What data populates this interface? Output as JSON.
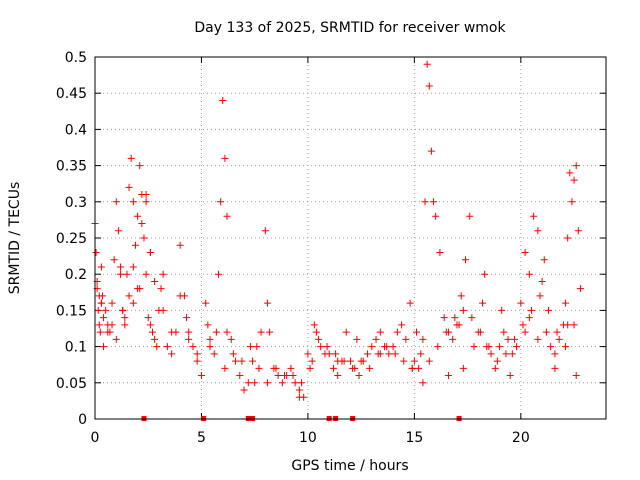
{
  "chart_data": {
    "type": "scatter",
    "title": "Day 133 of 2025, SRMTID for receiver wmok",
    "xlabel": "GPS time / hours",
    "ylabel": "SRMTID / TECUs",
    "xlim": [
      0,
      24
    ],
    "ylim": [
      0,
      0.5
    ],
    "grid": true,
    "legend": "none",
    "x_ticks": [
      0,
      5,
      10,
      15,
      20
    ],
    "x_tick_labels": [
      "0",
      "5",
      "10",
      "15",
      "20"
    ],
    "y_ticks": [
      0,
      0.05,
      0.1,
      0.15,
      0.2,
      0.25,
      0.3,
      0.35,
      0.4,
      0.45,
      0.5
    ],
    "y_tick_labels": [
      "0",
      "0.05",
      "0.1",
      "0.15",
      "0.2",
      "0.25",
      "0.3",
      "0.35",
      "0.4",
      "0.45",
      "0.5"
    ],
    "marker_color": "#ff0000",
    "marker": "plus",
    "series": [
      {
        "name": "SRMTID",
        "x": [
          0.0,
          0.05,
          0.1,
          0.15,
          0.2,
          0.25,
          0.3,
          0.35,
          0.4,
          0.5,
          0.6,
          0.7,
          0.8,
          0.9,
          1.0,
          1.1,
          1.2,
          1.3,
          1.4,
          1.5,
          1.6,
          1.7,
          1.8,
          1.9,
          2.0,
          2.1,
          2.2,
          2.3,
          2.4,
          2.5,
          2.6,
          2.7,
          2.8,
          2.9,
          3.0,
          3.2,
          3.4,
          3.6,
          3.8,
          4.0,
          4.2,
          4.4,
          4.6,
          4.8,
          5.0,
          5.2,
          5.4,
          5.6,
          5.8,
          5.9,
          6.0,
          6.1,
          6.2,
          6.4,
          6.6,
          6.8,
          7.0,
          7.2,
          7.4,
          7.6,
          7.8,
          8.0,
          8.2,
          8.4,
          8.6,
          8.8,
          9.0,
          9.2,
          9.4,
          9.6,
          9.8,
          10.0,
          10.2,
          10.4,
          10.6,
          10.8,
          11.0,
          11.2,
          11.4,
          11.6,
          11.8,
          12.0,
          12.2,
          12.4,
          12.6,
          12.8,
          13.0,
          13.2,
          13.4,
          13.6,
          13.8,
          14.0,
          14.2,
          14.4,
          14.6,
          14.8,
          15.0,
          15.2,
          15.4,
          15.5,
          15.6,
          15.7,
          15.8,
          15.9,
          16.0,
          16.2,
          16.4,
          16.6,
          16.8,
          17.0,
          17.2,
          17.4,
          17.6,
          17.8,
          18.0,
          18.2,
          18.4,
          18.6,
          18.8,
          19.0,
          19.2,
          19.4,
          19.6,
          19.8,
          20.0,
          20.2,
          20.4,
          20.6,
          20.8,
          21.0,
          21.2,
          21.4,
          21.6,
          21.8,
          22.0,
          22.1,
          22.2,
          22.3,
          22.4,
          22.5,
          22.6,
          22.7,
          22.8,
          0.1,
          0.2,
          0.3,
          0.4,
          0.6,
          0.8,
          1.0,
          1.2,
          1.4,
          1.6,
          1.8,
          2.0,
          2.2,
          2.4,
          2.6,
          2.8,
          3.2,
          3.6,
          4.0,
          4.4,
          4.8,
          5.3,
          5.7,
          6.1,
          6.5,
          6.9,
          7.3,
          7.7,
          8.1,
          8.5,
          8.9,
          9.3,
          9.7,
          10.1,
          10.5,
          10.9,
          11.3,
          11.7,
          12.1,
          12.5,
          12.9,
          13.3,
          13.7,
          14.1,
          14.5,
          14.9,
          15.3,
          15.7,
          16.1,
          16.5,
          16.9,
          17.3,
          17.7,
          18.1,
          18.5,
          18.9,
          19.3,
          19.7,
          20.1,
          20.5,
          20.9,
          21.3,
          21.7,
          22.1,
          22.5,
          0.3,
          1.3,
          2.1,
          2.4,
          5.4,
          7.5,
          9.6,
          11.4,
          12.4,
          14.9,
          15.4,
          16.6,
          17.3,
          18.3,
          19.5,
          20.2,
          20.8,
          21.6,
          22.6,
          1.8,
          2.6,
          3.1,
          4.3,
          6.2,
          8.1,
          10.3,
          12.3,
          13.4,
          15.1,
          17.1,
          19.1,
          20.4,
          21.1,
          22.2
        ],
        "y": [
          0.27,
          0.23,
          0.18,
          0.15,
          0.13,
          0.12,
          0.16,
          0.17,
          0.1,
          0.15,
          0.13,
          0.12,
          0.16,
          0.22,
          0.3,
          0.26,
          0.21,
          0.15,
          0.13,
          0.2,
          0.32,
          0.36,
          0.3,
          0.24,
          0.28,
          0.35,
          0.31,
          0.25,
          0.2,
          0.14,
          0.13,
          0.12,
          0.11,
          0.1,
          0.15,
          0.2,
          0.1,
          0.09,
          0.12,
          0.24,
          0.17,
          0.12,
          0.1,
          0.08,
          0.06,
          0.16,
          0.11,
          0.09,
          0.2,
          0.3,
          0.44,
          0.36,
          0.28,
          0.11,
          0.08,
          0.06,
          0.04,
          0.05,
          0.08,
          0.1,
          0.12,
          0.26,
          0.12,
          0.07,
          0.06,
          0.05,
          0.06,
          0.07,
          0.05,
          0.04,
          0.03,
          0.09,
          0.08,
          0.12,
          0.1,
          0.09,
          0.09,
          0.07,
          0.06,
          0.08,
          0.12,
          0.08,
          0.07,
          0.06,
          0.08,
          0.09,
          0.1,
          0.11,
          0.12,
          0.1,
          0.09,
          0.1,
          0.12,
          0.13,
          0.11,
          0.16,
          0.08,
          0.07,
          0.11,
          0.3,
          0.49,
          0.46,
          0.37,
          0.3,
          0.28,
          0.23,
          0.14,
          0.12,
          0.11,
          0.13,
          0.17,
          0.22,
          0.28,
          0.1,
          0.12,
          0.16,
          0.1,
          0.09,
          0.07,
          0.1,
          0.12,
          0.11,
          0.09,
          0.1,
          0.16,
          0.23,
          0.2,
          0.28,
          0.26,
          0.19,
          0.12,
          0.1,
          0.09,
          0.11,
          0.13,
          0.16,
          0.25,
          0.34,
          0.3,
          0.33,
          0.35,
          0.26,
          0.18,
          0.19,
          0.17,
          0.16,
          0.14,
          0.12,
          0.13,
          0.11,
          0.2,
          0.14,
          0.17,
          0.21,
          0.18,
          0.27,
          0.31,
          0.23,
          0.19,
          0.15,
          0.12,
          0.17,
          0.11,
          0.09,
          0.13,
          0.12,
          0.07,
          0.09,
          0.08,
          0.1,
          0.07,
          0.05,
          0.07,
          0.06,
          0.06,
          0.05,
          0.07,
          0.11,
          0.1,
          0.09,
          0.08,
          0.07,
          0.08,
          0.07,
          0.09,
          0.1,
          0.09,
          0.08,
          0.07,
          0.09,
          0.08,
          0.1,
          0.12,
          0.14,
          0.15,
          0.14,
          0.12,
          0.1,
          0.08,
          0.09,
          0.11,
          0.13,
          0.15,
          0.17,
          0.15,
          0.12,
          0.1,
          0.13,
          0.21,
          0.15,
          0.18,
          0.3,
          0.1,
          0.05,
          0.03,
          0.08,
          0.06,
          0.07,
          0.05,
          0.06,
          0.07,
          0.2,
          0.06,
          0.12,
          0.11,
          0.07,
          0.06,
          0.16,
          0.23,
          0.18,
          0.14,
          0.12,
          0.16,
          0.13,
          0.11,
          0.09,
          0.12,
          0.13,
          0.15,
          0.14,
          0.22,
          0.13
        ]
      }
    ],
    "baseline_markers_x": [
      2.3,
      5.1,
      7.2,
      7.4,
      11.0,
      11.3,
      12.1,
      17.1
    ]
  }
}
